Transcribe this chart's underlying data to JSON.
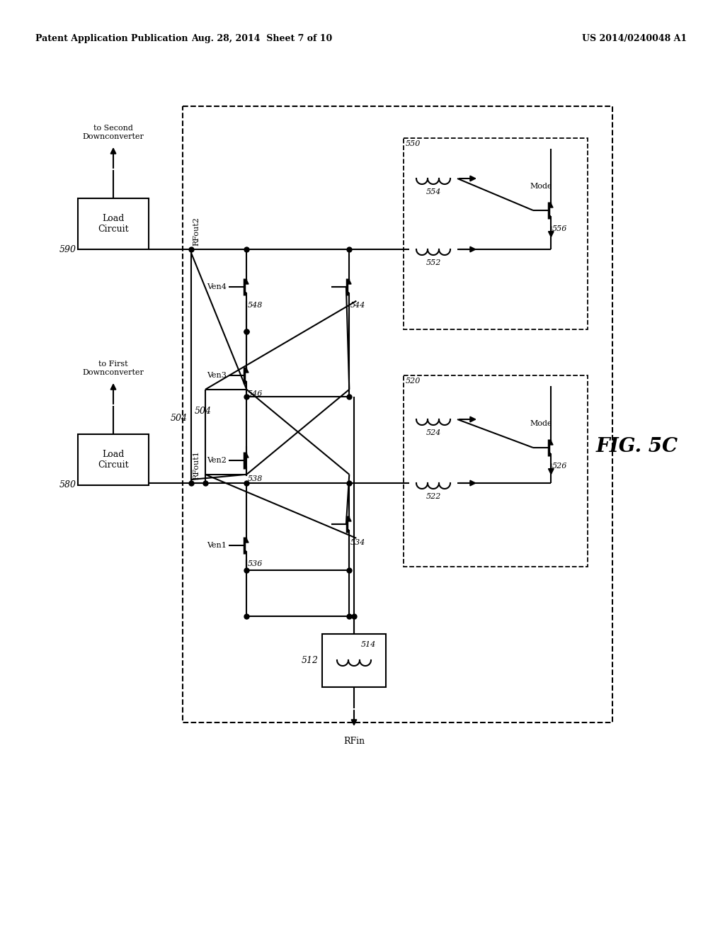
{
  "bg_color": "#ffffff",
  "patent_header_left": "Patent Application Publication",
  "patent_header_mid": "Aug. 28, 2014  Sheet 7 of 10",
  "patent_header_right": "US 2014/0240048 A1",
  "fig_label": "FIG. 5C",
  "n512": "512",
  "n514": "514",
  "n520": "520",
  "n522": "522",
  "n524": "524",
  "n526": "526",
  "n534": "534",
  "n536": "536",
  "n538": "538",
  "n544": "544",
  "n546": "546",
  "n548": "548",
  "n550": "550",
  "n552": "552",
  "n554": "554",
  "n556": "556",
  "n580": "580",
  "n590": "590",
  "n504": "504",
  "ven1": "Ven1",
  "ven2": "Ven2",
  "ven3": "Ven3",
  "ven4": "Ven4",
  "mode": "Mode",
  "rfin": "RFin",
  "rfout1": "RFout1",
  "rfout2": "RFout2",
  "load_circuit": "Load\nCircuit",
  "to_first": "to First\nDownconverter",
  "to_second": "to Second\nDownconverter"
}
